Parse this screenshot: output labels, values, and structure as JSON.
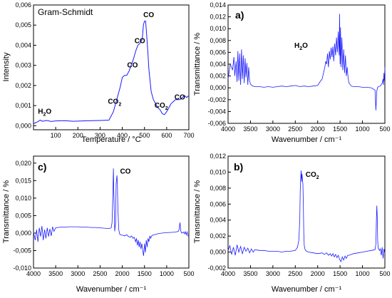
{
  "chart_data": [
    {
      "id": "gs",
      "type": "line",
      "title": "Gram-Schmidt",
      "xlabel": "Temperature / °C",
      "ylabel": "Intensity",
      "xlim": [
        0,
        700
      ],
      "ylim": [
        -0.0002,
        0.006
      ],
      "xticks": [
        100,
        200,
        300,
        400,
        500,
        600,
        700
      ],
      "xtick_labels": [
        "100",
        "200",
        "300",
        "400",
        "500",
        "600",
        "700"
      ],
      "yticks": [
        0,
        0.001,
        0.002,
        0.003,
        0.004,
        0.005,
        0.006
      ],
      "ytick_labels": [
        "0,000",
        "0,001",
        "0,002",
        "0,003",
        "0,004",
        "0,005",
        "0,006"
      ],
      "color": "#1a1aff",
      "grid": false,
      "series": [
        {
          "x": [
            0,
            20,
            30,
            40,
            60,
            80,
            100,
            140,
            180,
            220,
            260,
            300,
            340,
            360,
            375,
            390,
            400,
            410,
            420,
            430,
            440,
            450,
            460,
            470,
            480,
            490,
            495,
            500,
            505,
            510,
            515,
            520,
            530,
            540,
            550,
            560,
            570,
            580,
            590,
            600,
            610,
            620,
            630,
            640,
            650,
            660,
            670,
            680,
            690,
            700
          ],
          "y": [
            0.0001,
            0.0002,
            0.00028,
            0.00022,
            0.00026,
            0.00021,
            0.00024,
            0.00025,
            0.00022,
            0.00024,
            0.00025,
            0.00026,
            0.00028,
            0.0007,
            0.0013,
            0.0019,
            0.0024,
            0.0025,
            0.0025,
            0.0027,
            0.003,
            0.0033,
            0.0037,
            0.004,
            0.0041,
            0.0043,
            0.005,
            0.0052,
            0.0052,
            0.0045,
            0.0037,
            0.0028,
            0.0017,
            0.0013,
            0.0011,
            0.0009,
            0.0008,
            0.0006,
            0.00055,
            0.0007,
            0.0009,
            0.0011,
            0.0012,
            0.0013,
            0.0013,
            0.0013,
            0.0014,
            0.0015,
            0.0014,
            0.0015
          ]
        }
      ],
      "annotations": [
        {
          "base": "H",
          "sub": "2",
          "rest": "O",
          "x": 20,
          "y": 0.0006
        },
        {
          "base": "CO",
          "sub": "2",
          "rest": "",
          "x": 335,
          "y": 0.0011
        },
        {
          "base": "CO",
          "sub": "",
          "rest": "",
          "x": 422,
          "y": 0.0029
        },
        {
          "base": "CO",
          "sub": "",
          "rest": "",
          "x": 455,
          "y": 0.0041
        },
        {
          "base": "CO",
          "sub": "",
          "rest": "",
          "x": 495,
          "y": 0.0054
        },
        {
          "base": "CO",
          "sub": "2",
          "rest": "",
          "x": 545,
          "y": 0.0009
        },
        {
          "base": "CO",
          "sub": "",
          "rest": "",
          "x": 635,
          "y": 0.0013
        }
      ]
    },
    {
      "id": "a",
      "type": "line",
      "panel_label": "a)",
      "xlabel": "Wavenumber / cm⁻¹",
      "ylabel": "Transmittance / %",
      "xlim": [
        4000,
        500
      ],
      "ylim": [
        -0.006,
        0.014
      ],
      "xticks": [
        4000,
        3500,
        3000,
        2500,
        2000,
        1500,
        1000,
        500
      ],
      "xtick_labels": [
        "4000",
        "3500",
        "3000",
        "2500",
        "2000",
        "1500",
        "1000",
        "500"
      ],
      "yticks": [
        -0.006,
        -0.004,
        -0.002,
        0,
        0.002,
        0.004,
        0.006,
        0.008,
        0.01,
        0.012,
        0.014
      ],
      "ytick_labels": [
        "-0,006",
        "-0,004",
        "-0,002",
        "0,000",
        "0,002",
        "0,004",
        "0,006",
        "0,008",
        "0,010",
        "0,012",
        "0,014"
      ],
      "color": "#1a1aff",
      "grid": false,
      "series": [
        {
          "x": [
            4000,
            3950,
            3900,
            3870,
            3850,
            3820,
            3800,
            3780,
            3760,
            3740,
            3720,
            3700,
            3680,
            3660,
            3640,
            3620,
            3600,
            3580,
            3560,
            3540,
            3520,
            3500,
            3450,
            3400,
            3300,
            3200,
            3100,
            3000,
            2900,
            2800,
            2700,
            2600,
            2500,
            2400,
            2300,
            2200,
            2100,
            2000,
            1950,
            1900,
            1870,
            1840,
            1820,
            1800,
            1780,
            1760,
            1740,
            1720,
            1700,
            1680,
            1660,
            1640,
            1620,
            1600,
            1580,
            1560,
            1540,
            1520,
            1510,
            1500,
            1490,
            1480,
            1460,
            1440,
            1420,
            1400,
            1380,
            1360,
            1340,
            1320,
            1300,
            1250,
            1200,
            1100,
            1000,
            900,
            800,
            720,
            700,
            680,
            670,
            660,
            640,
            600,
            560,
            540,
            530,
            520,
            510,
            500
          ],
          "y": [
            0.0015,
            0.004,
            0.003,
            0.0052,
            0.002,
            0.0045,
            0.001,
            0.0062,
            0.0012,
            0.0058,
            0.0005,
            0.0065,
            0.0015,
            0.0055,
            0.0008,
            0.005,
            0.0018,
            0.0042,
            0.0005,
            0.0035,
            0.0012,
            0.0006,
            0.0003,
            0.0002,
            0.0002,
            0.0001,
            0.0002,
            0.0001,
            0.0002,
            0.0003,
            0.0002,
            0.0003,
            0.0004,
            0.0002,
            0.0003,
            0.0002,
            0.0003,
            0.0004,
            0.001,
            0.0015,
            0.0025,
            0.0035,
            0.0045,
            0.004,
            0.0058,
            0.0035,
            0.0062,
            0.0048,
            0.0068,
            0.0052,
            0.007,
            0.0045,
            0.0075,
            0.0055,
            0.0085,
            0.006,
            0.0095,
            0.0055,
            0.0125,
            0.004,
            0.0102,
            0.0035,
            0.0085,
            0.003,
            0.0065,
            0.0025,
            0.0055,
            0.002,
            0.0035,
            0.0015,
            0.0008,
            0.0003,
            0.0002,
            0.0002,
            0.0001,
            0.0001,
            0.0,
            -0.0004,
            -0.0038,
            -0.0005,
            -0.0002,
            0.0001,
            0.0002,
            0.0003,
            0.0008,
            0.0015,
            0.0005,
            0.0025,
            0.0012,
            0.0035
          ]
        }
      ],
      "annotations": [
        {
          "base": "H",
          "sub": "2",
          "rest": "O",
          "x": 2520,
          "y": 0.0068
        }
      ]
    },
    {
      "id": "c",
      "type": "line",
      "panel_label": "c)",
      "xlabel": "Wavenumber / cm⁻¹",
      "ylabel": "Transmittance / %",
      "xlim": [
        4000,
        500
      ],
      "ylim": [
        -0.01,
        0.022
      ],
      "xticks": [
        4000,
        3500,
        3000,
        2500,
        2000,
        1500,
        1000,
        500
      ],
      "xtick_labels": [
        "4000",
        "3500",
        "3000",
        "2500",
        "2000",
        "1500",
        "1000",
        "500"
      ],
      "yticks": [
        -0.01,
        -0.005,
        0,
        0.005,
        0.01,
        0.015,
        0.02
      ],
      "ytick_labels": [
        "-0,010",
        "-0,005",
        "0,000",
        "0,005",
        "0,010",
        "0,015",
        "0,020"
      ],
      "color": "#1a1aff",
      "grid": false,
      "series": [
        {
          "x": [
            4000,
            3960,
            3930,
            3900,
            3870,
            3840,
            3810,
            3780,
            3750,
            3720,
            3690,
            3660,
            3630,
            3600,
            3570,
            3540,
            3500,
            3450,
            3400,
            3300,
            3200,
            3100,
            3000,
            2900,
            2800,
            2700,
            2600,
            2500,
            2400,
            2300,
            2250,
            2230,
            2210,
            2200,
            2190,
            2170,
            2150,
            2140,
            2120,
            2110,
            2100,
            2090,
            2080,
            2060,
            2040,
            2000,
            1950,
            1900,
            1860,
            1820,
            1790,
            1760,
            1730,
            1700,
            1680,
            1660,
            1640,
            1620,
            1600,
            1580,
            1560,
            1540,
            1520,
            1500,
            1480,
            1460,
            1440,
            1420,
            1400,
            1380,
            1360,
            1340,
            1300,
            1250,
            1200,
            1100,
            1000,
            900,
            800,
            740,
            720,
            700,
            680,
            660,
            620,
            600,
            580,
            560,
            540,
            520,
            500
          ],
          "y": [
            0.0002,
            -0.002,
            0.001,
            -0.0025,
            0.0015,
            -0.001,
            0.002,
            -0.002,
            0.001,
            -0.0015,
            0.0015,
            -0.001,
            0.0012,
            -0.0008,
            0.0018,
            0.0005,
            0.0015,
            0.0016,
            0.0017,
            0.0017,
            0.0018,
            0.0018,
            0.0018,
            0.0017,
            0.0017,
            0.0016,
            0.0016,
            0.0015,
            0.0014,
            0.0013,
            0.0015,
            0.003,
            0.012,
            0.0185,
            0.012,
            0.0005,
            0.003,
            0.014,
            0.0165,
            0.014,
            0.008,
            0.004,
            0.001,
            -0.0002,
            -0.0005,
            -0.0006,
            -0.0008,
            -0.0005,
            -0.001,
            -0.0012,
            -0.0008,
            -0.0015,
            -0.0012,
            -0.0025,
            -0.0015,
            -0.0035,
            -0.002,
            -0.004,
            -0.0025,
            -0.0045,
            -0.003,
            -0.005,
            -0.0065,
            -0.003,
            -0.0055,
            -0.002,
            -0.004,
            -0.0015,
            -0.0025,
            -0.0008,
            -0.0015,
            -0.0008,
            -0.0005,
            -0.0004,
            -0.0002,
            0.0,
            0.0001,
            0.0002,
            0.0003,
            0.0005,
            0.001,
            0.003,
            0.0005,
            0.0,
            0.0003,
            -0.0002,
            0.0004,
            -0.0005,
            0.0003,
            -0.0008,
            -0.001
          ]
        }
      ],
      "annotations": [
        {
          "base": "CO",
          "sub": "",
          "rest": "",
          "x": 2050,
          "y": 0.017
        }
      ]
    },
    {
      "id": "b",
      "type": "line",
      "panel_label": "b)",
      "xlabel": "Wavenumber / cm⁻¹",
      "ylabel": "Transmittance / %",
      "xlim": [
        4000,
        500
      ],
      "ylim": [
        -0.002,
        0.012
      ],
      "xticks": [
        4000,
        3500,
        3000,
        2500,
        2000,
        1500,
        1000,
        500
      ],
      "xtick_labels": [
        "4000",
        "3500",
        "3000",
        "2500",
        "2000",
        "1500",
        "1000",
        "500"
      ],
      "yticks": [
        -0.002,
        0,
        0.002,
        0.004,
        0.006,
        0.008,
        0.01,
        0.012
      ],
      "ytick_labels": [
        "-0,002",
        "0,000",
        "0,002",
        "0,004",
        "0,006",
        "0,008",
        "0,010",
        "0,012"
      ],
      "color": "#1a1aff",
      "grid": false,
      "series": [
        {
          "x": [
            4000,
            3960,
            3920,
            3880,
            3840,
            3800,
            3760,
            3720,
            3680,
            3640,
            3600,
            3560,
            3520,
            3480,
            3440,
            3400,
            3300,
            3200,
            3100,
            3000,
            2900,
            2800,
            2700,
            2600,
            2500,
            2450,
            2420,
            2400,
            2390,
            2380,
            2370,
            2360,
            2350,
            2340,
            2330,
            2320,
            2310,
            2300,
            2280,
            2250,
            2200,
            2100,
            2000,
            1900,
            1850,
            1800,
            1760,
            1720,
            1690,
            1660,
            1630,
            1600,
            1570,
            1540,
            1510,
            1480,
            1450,
            1420,
            1390,
            1360,
            1330,
            1300,
            1250,
            1200,
            1100,
            1000,
            900,
            800,
            720,
            700,
            690,
            680,
            670,
            660,
            650,
            620,
            600,
            580,
            560,
            540,
            520,
            500
          ],
          "y": [
            0.0002,
            0.0008,
            -0.0003,
            0.0006,
            -0.0004,
            0.0009,
            0.0,
            0.0007,
            -0.0002,
            0.0006,
            0.0001,
            0.0005,
            -0.0001,
            0.0004,
            0.0,
            0.0003,
            0.0002,
            0.0002,
            0.0001,
            0.0001,
            0.0001,
            0.0,
            0.0001,
            0.0001,
            0.0002,
            0.0006,
            0.0015,
            0.004,
            0.0075,
            0.009,
            0.0102,
            0.0088,
            0.0098,
            0.0092,
            0.0085,
            0.006,
            0.0025,
            0.0008,
            0.0003,
            0.0001,
            0.0,
            -0.0001,
            -0.0002,
            -0.0001,
            -0.0003,
            -0.0001,
            -0.0004,
            -0.0002,
            -0.0005,
            -0.0002,
            -0.0006,
            -0.0003,
            -0.0007,
            -0.0004,
            -0.0009,
            -0.0012,
            -0.0006,
            -0.001,
            -0.0005,
            -0.0008,
            -0.0004,
            -0.0004,
            -0.0003,
            -0.0002,
            -0.0001,
            0.0,
            0.0001,
            0.0002,
            0.0003,
            0.001,
            0.004,
            0.0058,
            0.0045,
            0.0015,
            0.0005,
            0.0002,
            0.0004,
            -0.0004,
            0.0006,
            -0.0008,
            0.0004,
            -0.0002
          ]
        }
      ],
      "annotations": [
        {
          "base": "CO",
          "sub": "2",
          "rest": "",
          "x": 2270,
          "y": 0.0094
        }
      ]
    }
  ]
}
